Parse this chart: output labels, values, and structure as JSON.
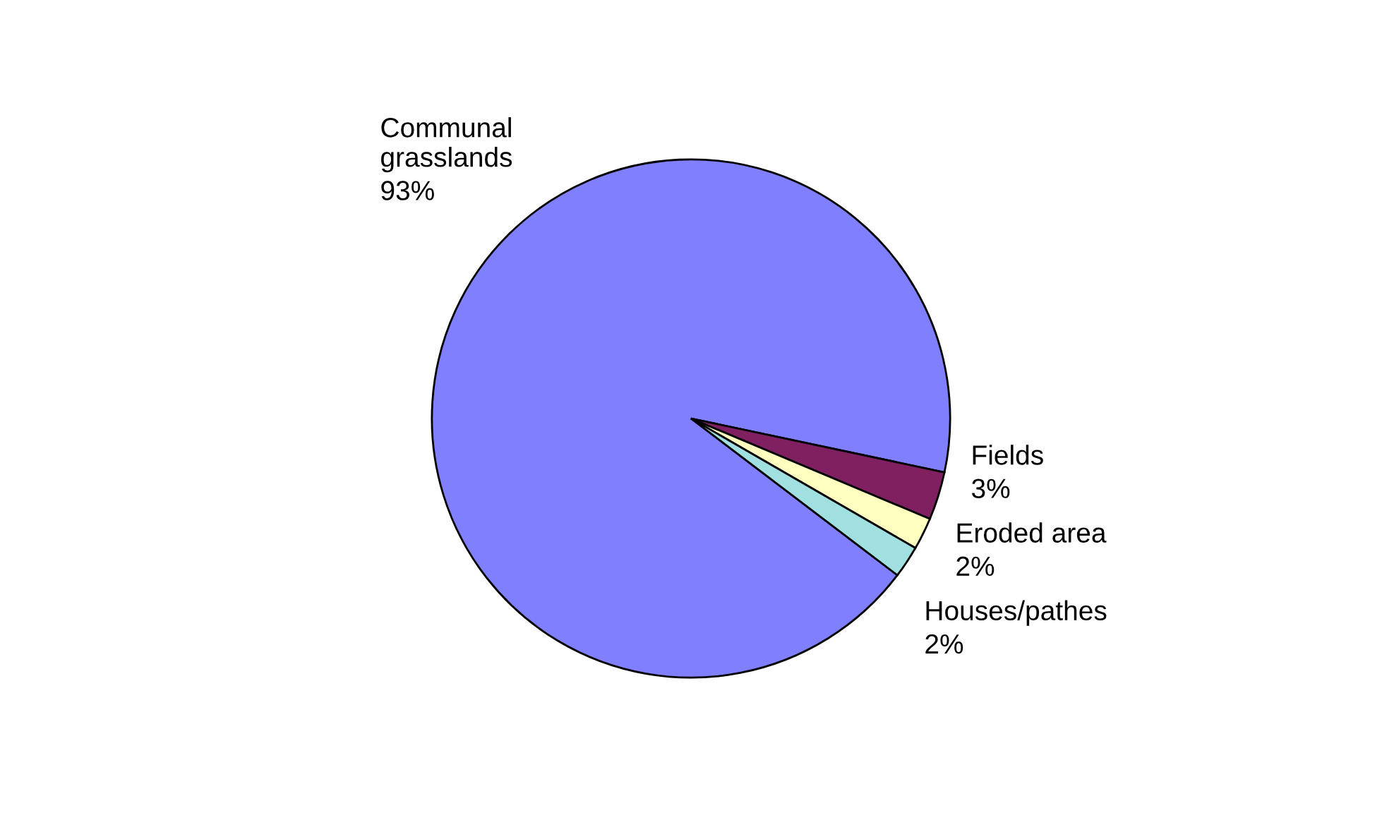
{
  "chart_data": {
    "type": "pie",
    "categories": [
      "Communal grasslands",
      "Fields",
      "Eroded area",
      "Houses/pathes"
    ],
    "values": [
      93,
      3,
      2,
      2
    ],
    "colors": [
      "#8080ff",
      "#802060",
      "#ffffc0",
      "#a0e0e0"
    ],
    "value_labels": [
      "93%",
      "3%",
      "2%",
      "2%"
    ]
  }
}
